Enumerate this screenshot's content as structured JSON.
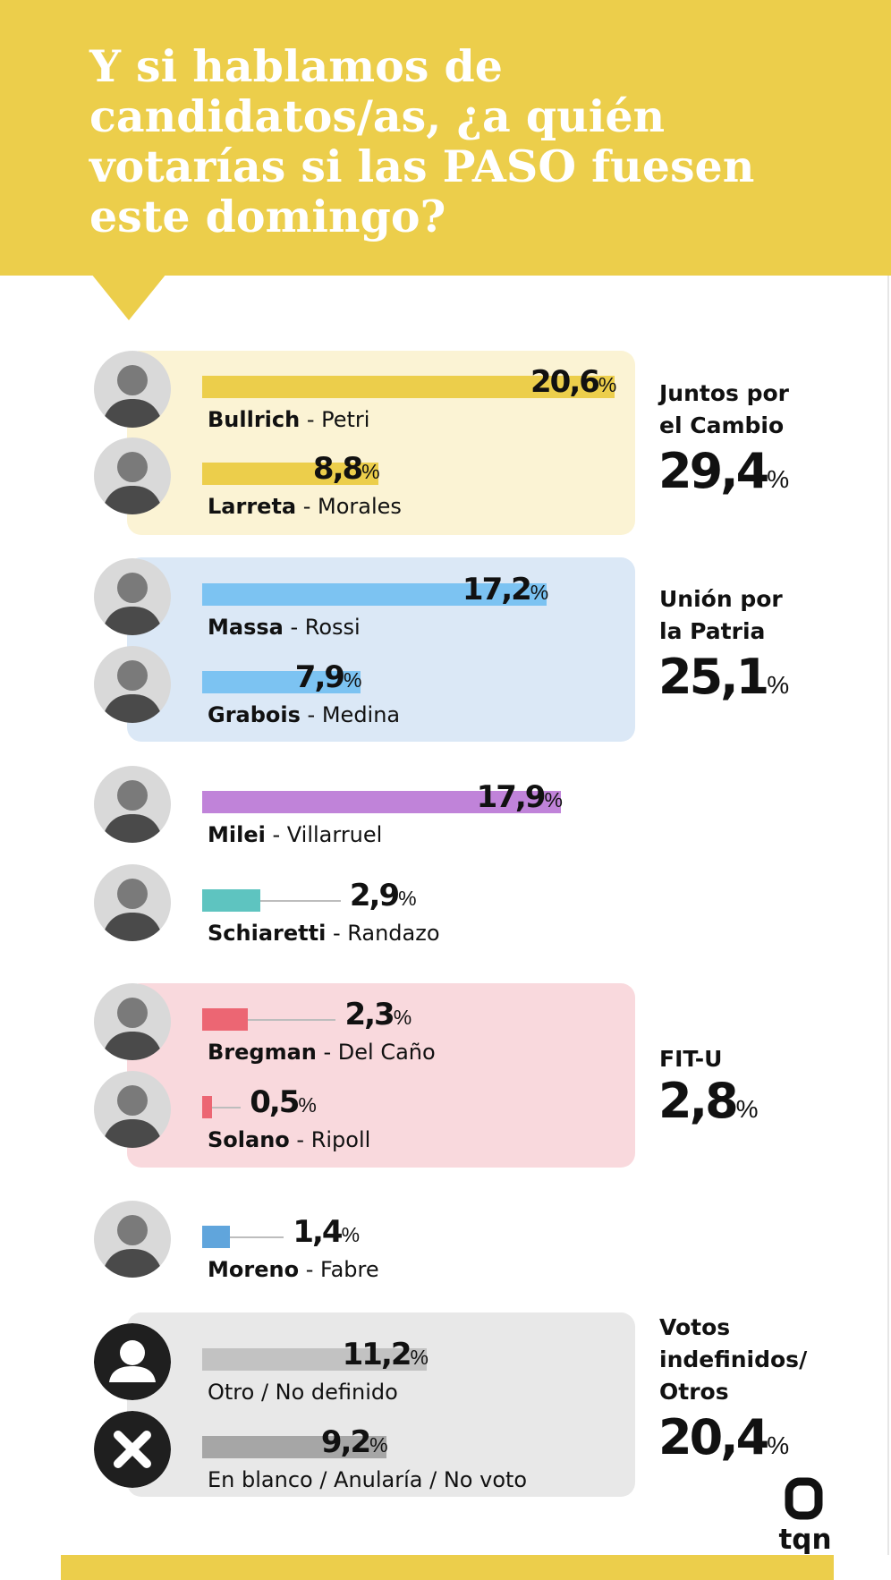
{
  "title": "Y si hablamos de candidatos/as, ¿a quién votarías si las PASO fuesen este domingo?",
  "brand": "tqn",
  "chart_data": {
    "type": "bar",
    "orientation": "horizontal",
    "xlim": [
      0,
      20.6
    ],
    "title": "Y si hablamos de candidatos/as, ¿a quién votarías si las PASO fuesen este domingo?",
    "candidates": [
      {
        "lead": "Bullrich",
        "sep": " - ",
        "second": "Petri",
        "value": 20.6,
        "label": "20,6",
        "color": "#ecce4b",
        "avatar": "photo"
      },
      {
        "lead": "Larreta",
        "sep": " - ",
        "second": "Morales",
        "value": 8.8,
        "label": "8,8",
        "color": "#ecce4b",
        "avatar": "photo"
      },
      {
        "lead": "Massa",
        "sep": " - ",
        "second": "Rossi",
        "value": 17.2,
        "label": "17,2",
        "color": "#7cc3f2",
        "avatar": "photo"
      },
      {
        "lead": "Grabois",
        "sep": " - ",
        "second": "Medina",
        "value": 7.9,
        "label": "7,9",
        "color": "#7cc3f2",
        "avatar": "photo"
      },
      {
        "lead": "Milei",
        "sep": " - ",
        "second": "Villarruel",
        "value": 17.9,
        "label": "17,9",
        "color": "#c083d9",
        "avatar": "photo"
      },
      {
        "lead": "Schiaretti",
        "sep": " - ",
        "second": "Randazo",
        "value": 2.9,
        "label": "2,9",
        "color": "#5ec4c0",
        "avatar": "photo"
      },
      {
        "lead": "Bregman",
        "sep": " - ",
        "second": "Del Caño",
        "value": 2.3,
        "label": "2,3",
        "color": "#ec6673",
        "avatar": "photo"
      },
      {
        "lead": "Solano",
        "sep": " - ",
        "second": "Ripoll",
        "value": 0.5,
        "label": "0,5",
        "color": "#ec6673",
        "avatar": "photo"
      },
      {
        "lead": "Moreno",
        "sep": " - ",
        "second": "Fabre",
        "value": 1.4,
        "label": "1,4",
        "color": "#60a5dc",
        "avatar": "photo"
      },
      {
        "lead": "",
        "sep": "",
        "second": "Otro / No definido",
        "value": 11.2,
        "label": "11,2",
        "color": "#c2c2c2",
        "avatar": "person-icon"
      },
      {
        "lead": "",
        "sep": "",
        "second": "En blanco / Anularía / No voto",
        "value": 9.2,
        "label": "9,2",
        "color": "#a6a6a6",
        "avatar": "x-icon"
      }
    ],
    "coalitions": [
      {
        "label_lines": [
          "Juntos por",
          "el Cambio"
        ],
        "total": "29,4",
        "color": "#fbf3d4"
      },
      {
        "label_lines": [
          "Unión por",
          "la Patria"
        ],
        "total": "25,1",
        "color": "#dbe8f6"
      },
      {
        "label_lines": [
          "FIT-U"
        ],
        "total": "2,8",
        "color": "#f9d9dd"
      },
      {
        "label_lines": [
          "Votos",
          "indefinidos/",
          "Otros"
        ],
        "total": "20,4",
        "color": "#e8e8e8"
      }
    ],
    "unit": "%"
  }
}
